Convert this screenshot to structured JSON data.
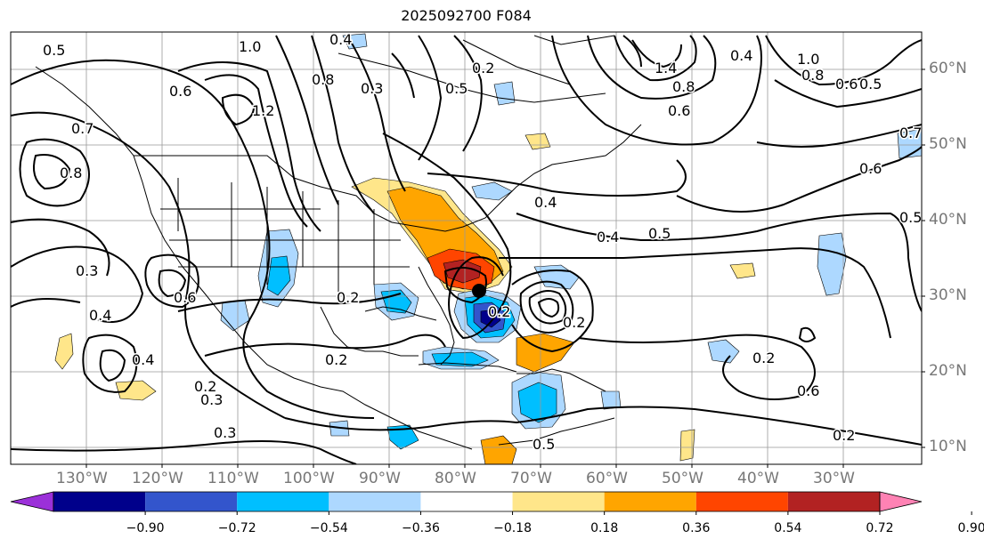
{
  "title": "2025092700 F084",
  "lon_labels": [
    "130°W",
    "120°W",
    "110°W",
    "100°W",
    "90°W",
    "80°W",
    "70°W",
    "60°W",
    "50°W",
    "40°W",
    "30°W"
  ],
  "lat_labels": [
    "60°N",
    "50°N",
    "40°N",
    "30°N",
    "20°N",
    "10°N"
  ],
  "colorbar": {
    "ticks": [
      "−0.90",
      "−0.72",
      "−0.54",
      "−0.36",
      "−0.18",
      "0.18",
      "0.36",
      "0.54",
      "0.72",
      "0.90"
    ],
    "colors": [
      "#9b30d9",
      "#00008b",
      "#3355cc",
      "#00bfff",
      "#add8ff",
      "#ffffff",
      "#ffe68a",
      "#ffa500",
      "#ff4500",
      "#b22222",
      "#ff82b4"
    ]
  },
  "contour_labels": [
    "0.5",
    "1.0",
    "0.4",
    "0.8",
    "0.3",
    "1.2",
    "0.6",
    "0.5",
    "0.2",
    "1.4",
    "0.8",
    "0.6",
    "0.4",
    "1.0",
    "0.8",
    "0.6",
    "0.5",
    "0.7",
    "0.6",
    "0.5",
    "0.8",
    "0.7",
    "0.3",
    "0.6",
    "0.4",
    "0.3",
    "0.4",
    "0.2",
    "0.4",
    "0.5",
    "0.2",
    "0.6",
    "0.2",
    "0.2",
    "0.2",
    "0.3",
    "0.2",
    "0.2",
    "0.5",
    "0.4"
  ],
  "storm_marker": "low-center"
}
